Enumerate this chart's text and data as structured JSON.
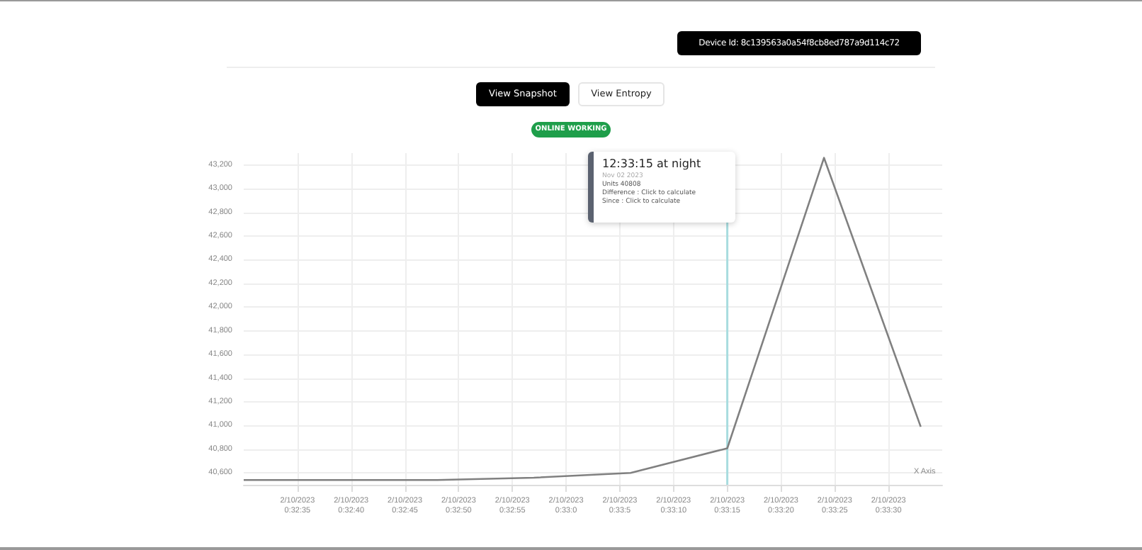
{
  "chart_data": {
    "type": "line",
    "xlabel": "X Axis",
    "x": [
      "2023-02-10T00:32:30",
      "2023-02-10T00:32:39",
      "2023-02-10T00:32:48",
      "2023-02-10T00:32:57",
      "2023-02-10T00:33:06",
      "2023-02-10T00:33:15",
      "2023-02-10T00:33:24",
      "2023-02-10T00:33:33"
    ],
    "series": [
      {
        "color": "#808080",
        "values": [
          40540,
          40540,
          40540,
          40560,
          40600,
          40808,
          43260,
          40990
        ]
      }
    ],
    "xlim": [
      "2023-02-10T00:32:30",
      "2023-02-10T00:33:35"
    ],
    "xticks": [
      {
        "value": "2023-02-10T00:32:35",
        "label": "2/10/2023\n0:32:35"
      },
      {
        "value": "2023-02-10T00:32:40",
        "label": "2/10/2023\n0:32:40"
      },
      {
        "value": "2023-02-10T00:32:45",
        "label": "2/10/2023\n0:32:45"
      },
      {
        "value": "2023-02-10T00:32:50",
        "label": "2/10/2023\n0:32:50"
      },
      {
        "value": "2023-02-10T00:32:55",
        "label": "2/10/2023\n0:32:55"
      },
      {
        "value": "2023-02-10T00:33:00",
        "label": "2/10/2023\n0:33:0"
      },
      {
        "value": "2023-02-10T00:33:05",
        "label": "2/10/2023\n0:33:5"
      },
      {
        "value": "2023-02-10T00:33:10",
        "label": "2/10/2023\n0:33:10"
      },
      {
        "value": "2023-02-10T00:33:15",
        "label": "2/10/2023\n0:33:15"
      },
      {
        "value": "2023-02-10T00:33:20",
        "label": "2/10/2023\n0:33:20"
      },
      {
        "value": "2023-02-10T00:33:25",
        "label": "2/10/2023\n0:33:25"
      },
      {
        "value": "2023-02-10T00:33:30",
        "label": "2/10/2023\n0:33:30"
      }
    ],
    "ylim": [
      40500,
      43300
    ],
    "yticks": [
      {
        "value": 40600,
        "label": "40,600"
      },
      {
        "value": 40800,
        "label": "40,800"
      },
      {
        "value": 41000,
        "label": "41,000"
      },
      {
        "value": 41200,
        "label": "41,200"
      },
      {
        "value": 41400,
        "label": "41,400"
      },
      {
        "value": 41600,
        "label": "41,600"
      },
      {
        "value": 41800,
        "label": "41,800"
      },
      {
        "value": 42000,
        "label": "42,000"
      },
      {
        "value": 42200,
        "label": "42,200"
      },
      {
        "value": 42400,
        "label": "42,400"
      },
      {
        "value": 42600,
        "label": "42,600"
      },
      {
        "value": 42800,
        "label": "42,800"
      },
      {
        "value": 43000,
        "label": "43,000"
      },
      {
        "value": 43200,
        "label": "43,200"
      }
    ],
    "grid": true,
    "marker": "none",
    "line_style": "solid",
    "ref_lines": [
      {
        "axis": "x",
        "value": "2023-02-10T00:33:15",
        "color": "#a8dcdf"
      }
    ],
    "annotations": [
      "Device Id: 8c139563a0a54f8cb8ed787a9d114c72",
      "View Snapshot",
      "View Entropy",
      "ONLINE WORKING",
      "12:33:15 at night",
      "Nov 02 2023",
      "Units 40808",
      "Difference : Click to calculate",
      "Since : Click to calculate"
    ]
  }
}
